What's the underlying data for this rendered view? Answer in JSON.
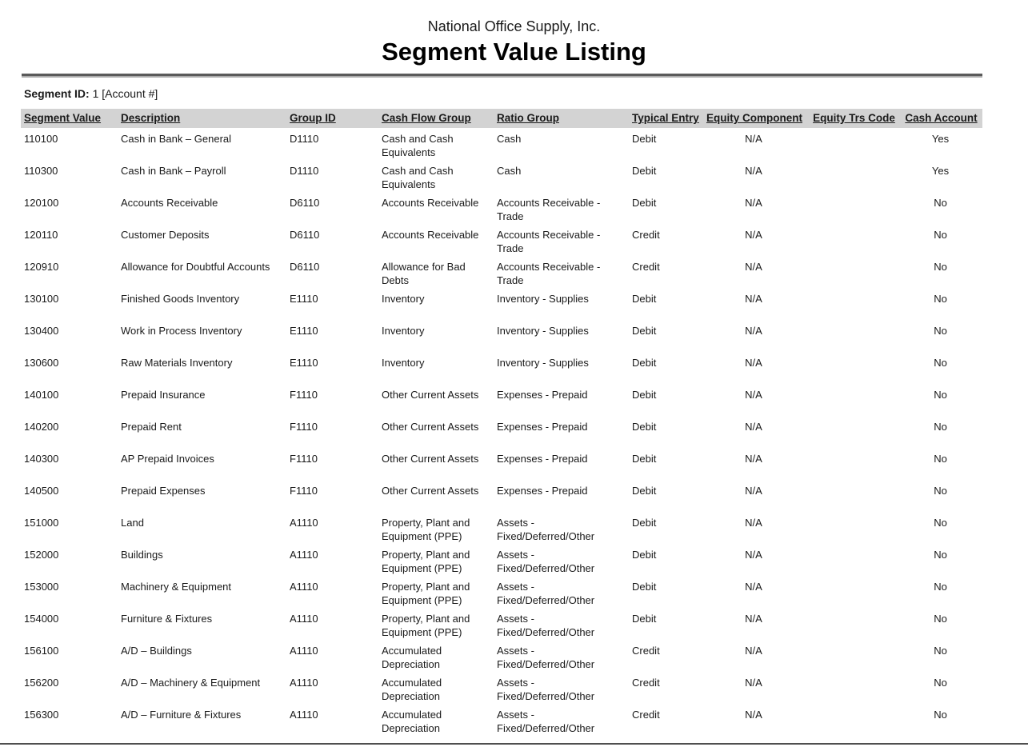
{
  "report": {
    "company": "National Office Supply, Inc.",
    "title": "Segment Value Listing",
    "segment_id_label": "Segment ID:",
    "segment_id_value": "1 [Account #]"
  },
  "table": {
    "columns": [
      "Segment Value",
      "Description",
      "Group ID",
      "Cash Flow Group",
      "Ratio Group",
      "Typical Entry",
      "Equity Component",
      "Equity Trs Code",
      "Cash Account"
    ],
    "rows": [
      [
        "110100",
        "Cash in Bank – General",
        "D1110",
        "Cash and Cash Equivalents",
        "Cash",
        "Debit",
        "N/A",
        "",
        "Yes"
      ],
      [
        "110300",
        "Cash in Bank – Payroll",
        "D1110",
        "Cash and Cash Equivalents",
        "Cash",
        "Debit",
        "N/A",
        "",
        "Yes"
      ],
      [
        "120100",
        "Accounts Receivable",
        "D6110",
        "Accounts Receivable",
        "Accounts Receivable - Trade",
        "Debit",
        "N/A",
        "",
        "No"
      ],
      [
        "120110",
        "Customer Deposits",
        "D6110",
        "Accounts Receivable",
        "Accounts Receivable - Trade",
        "Credit",
        "N/A",
        "",
        "No"
      ],
      [
        "120910",
        "Allowance for Doubtful Accounts",
        "D6110",
        "Allowance for Bad Debts",
        "Accounts Receivable - Trade",
        "Credit",
        "N/A",
        "",
        "No"
      ],
      [
        "130100",
        "Finished Goods Inventory",
        "E1110",
        "Inventory",
        "Inventory - Supplies",
        "Debit",
        "N/A",
        "",
        "No"
      ],
      [
        "130400",
        "Work in Process Inventory",
        "E1110",
        "Inventory",
        "Inventory - Supplies",
        "Debit",
        "N/A",
        "",
        "No"
      ],
      [
        "130600",
        "Raw Materials Inventory",
        "E1110",
        "Inventory",
        "Inventory - Supplies",
        "Debit",
        "N/A",
        "",
        "No"
      ],
      [
        "140100",
        "Prepaid Insurance",
        "F1110",
        "Other Current Assets",
        "Expenses - Prepaid",
        "Debit",
        "N/A",
        "",
        "No"
      ],
      [
        "140200",
        "Prepaid Rent",
        "F1110",
        "Other Current Assets",
        "Expenses - Prepaid",
        "Debit",
        "N/A",
        "",
        "No"
      ],
      [
        "140300",
        "AP Prepaid Invoices",
        "F1110",
        "Other Current Assets",
        "Expenses - Prepaid",
        "Debit",
        "N/A",
        "",
        "No"
      ],
      [
        "140500",
        "Prepaid Expenses",
        "F1110",
        "Other Current Assets",
        "Expenses - Prepaid",
        "Debit",
        "N/A",
        "",
        "No"
      ],
      [
        "151000",
        "Land",
        "A1110",
        "Property, Plant and Equipment (PPE)",
        "Assets - Fixed/Deferred/Other",
        "Debit",
        "N/A",
        "",
        "No"
      ],
      [
        "152000",
        "Buildings",
        "A1110",
        "Property, Plant and Equipment (PPE)",
        "Assets - Fixed/Deferred/Other",
        "Debit",
        "N/A",
        "",
        "No"
      ],
      [
        "153000",
        "Machinery & Equipment",
        "A1110",
        "Property, Plant and Equipment (PPE)",
        "Assets - Fixed/Deferred/Other",
        "Debit",
        "N/A",
        "",
        "No"
      ],
      [
        "154000",
        "Furniture & Fixtures",
        "A1110",
        "Property, Plant and Equipment (PPE)",
        "Assets - Fixed/Deferred/Other",
        "Debit",
        "N/A",
        "",
        "No"
      ],
      [
        "156100",
        "A/D – Buildings",
        "A1110",
        "Accumulated Depreciation",
        "Assets - Fixed/Deferred/Other",
        "Credit",
        "N/A",
        "",
        "No"
      ],
      [
        "156200",
        "A/D – Machinery & Equipment",
        "A1110",
        "Accumulated Depreciation",
        "Assets - Fixed/Deferred/Other",
        "Credit",
        "N/A",
        "",
        "No"
      ],
      [
        "156300",
        "A/D – Furniture & Fixtures",
        "A1110",
        "Accumulated Depreciation",
        "Assets - Fixed/Deferred/Other",
        "Credit",
        "N/A",
        "",
        "No"
      ]
    ]
  },
  "colors": {
    "header_band": "#d3d3d3",
    "rule_dark": "#5a5a5a",
    "rule_light": "#ababab",
    "bottom_rule": "#4f4f4f",
    "text": "#1a1a1a"
  }
}
